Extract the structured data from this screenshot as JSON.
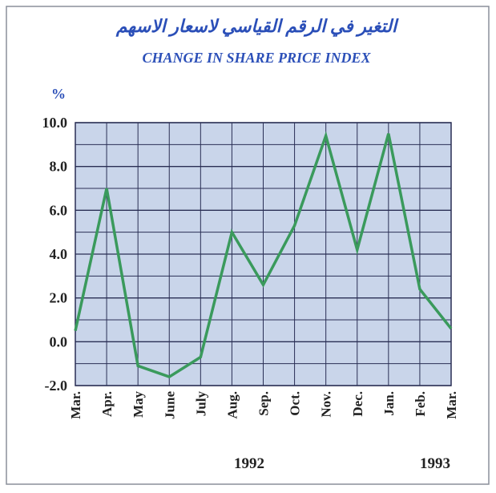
{
  "chart_data": {
    "type": "line",
    "title": "التغير في الرقم القياسي لاسعار الاسهم",
    "subtitle": "CHANGE IN SHARE PRICE INDEX",
    "y_label": "%",
    "categories": [
      "Mar.",
      "Apr.",
      "May",
      "June",
      "July",
      "Aug.",
      "Sep.",
      "Oct.",
      "Nov.",
      "Dec.",
      "Jan.",
      "Feb.",
      "Mar."
    ],
    "series": [
      {
        "color": "#3a9a5c",
        "values": [
          0.5,
          7.0,
          -1.1,
          -1.6,
          -0.7,
          5.0,
          2.6,
          5.3,
          9.4,
          4.2,
          9.5,
          2.4,
          0.6
        ]
      }
    ],
    "year_labels": [
      "1992",
      "1993"
    ],
    "ylim": [
      -2,
      10
    ],
    "yticks": [
      {
        "value": -2,
        "label": "-2.0"
      },
      {
        "value": 0,
        "label": "0.0"
      },
      {
        "value": 2,
        "label": "2.0"
      },
      {
        "value": 4,
        "label": "4.0"
      },
      {
        "value": 6,
        "label": "6.0"
      },
      {
        "value": 8,
        "label": "8.0"
      },
      {
        "value": 10,
        "label": "10.0"
      }
    ],
    "y_minor_ticks": [
      -1,
      1,
      3,
      5,
      7,
      9
    ],
    "grid": true
  }
}
